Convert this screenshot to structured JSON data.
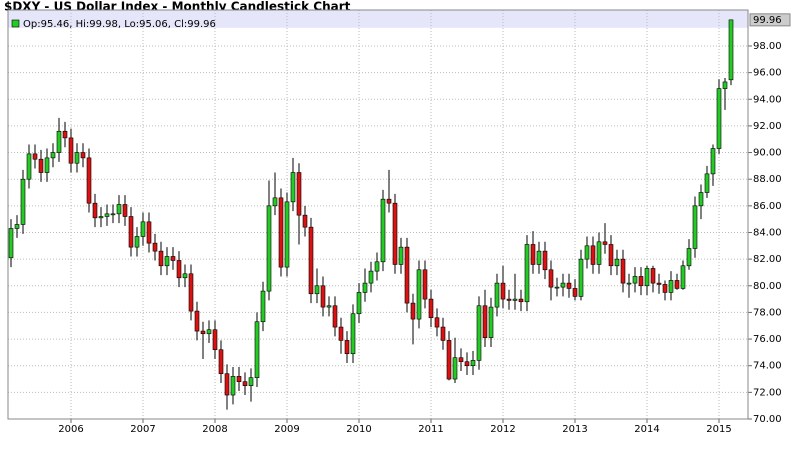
{
  "chart_data": {
    "type": "candlestick",
    "title": "$DXY - US Dollar Index - Monthly Candlestick Chart",
    "legend": "Op:95.46, Hi:99.98, Lo:95.06, Cl:99.96",
    "up_color": "#22cc22",
    "down_color": "#dd1111",
    "grid": true,
    "categories": [
      null,
      null,
      null,
      null,
      null,
      null,
      null,
      null,
      null,
      null,
      "2006",
      null,
      null,
      null,
      null,
      null,
      null,
      null,
      null,
      null,
      null,
      null,
      "2007",
      null,
      null,
      null,
      null,
      null,
      null,
      null,
      null,
      null,
      null,
      null,
      "2008",
      null,
      null,
      null,
      null,
      null,
      null,
      null,
      null,
      null,
      null,
      null,
      "2009",
      null,
      null,
      null,
      null,
      null,
      null,
      null,
      null,
      null,
      null,
      null,
      "2010",
      null,
      null,
      null,
      null,
      null,
      null,
      null,
      null,
      null,
      null,
      null,
      "2011",
      null,
      null,
      null,
      null,
      null,
      null,
      null,
      null,
      null,
      null,
      null,
      "2012",
      null,
      null,
      null,
      null,
      null,
      null,
      null,
      null,
      null,
      null,
      null,
      "2013",
      null,
      null,
      null,
      null,
      null,
      null,
      null,
      null,
      null,
      null,
      null,
      "2014",
      null,
      null,
      null,
      null,
      null,
      null,
      null,
      null,
      null,
      null,
      null,
      "2015",
      null,
      null
    ],
    "open": [
      82.1,
      84.3,
      84.6,
      88.0,
      89.9,
      89.5,
      88.5,
      89.6,
      90.0,
      91.6,
      91.1,
      89.2,
      90.0,
      89.6,
      86.2,
      85.1,
      85.2,
      85.4,
      85.4,
      86.1,
      85.2,
      82.9,
      83.7,
      84.8,
      83.2,
      82.6,
      81.5,
      82.2,
      81.9,
      80.6,
      80.9,
      78.1,
      76.6,
      76.4,
      76.7,
      75.2,
      73.4,
      71.8,
      73.2,
      72.8,
      72.5,
      73.1,
      77.3,
      79.6,
      86.0,
      86.6,
      81.4,
      86.3,
      88.5,
      85.3,
      84.4,
      79.4,
      80.0,
      78.4,
      78.5,
      76.9,
      75.9,
      74.9,
      77.9,
      79.5,
      80.2,
      81.1,
      81.8,
      86.5,
      86.2,
      81.6,
      82.9,
      78.7,
      77.5,
      81.2,
      79.0,
      77.6,
      76.9,
      75.9,
      73.0,
      74.6,
      74.3,
      74.0,
      74.4,
      78.5,
      76.1,
      78.4,
      80.2,
      79.0,
      78.9,
      79.0,
      78.8,
      83.1,
      81.6,
      82.6,
      81.2,
      79.9,
      79.9,
      80.2,
      79.8,
      79.2,
      82.0,
      83.0,
      81.6,
      83.3,
      83.1,
      81.5,
      82.0,
      80.2,
      80.2,
      80.7,
      80.0,
      81.3,
      80.2,
      80.1,
      79.5,
      80.4,
      79.8,
      81.5,
      82.8,
      86.0,
      87.0,
      88.4,
      90.3,
      94.8,
      95.46
    ],
    "high": [
      85.0,
      85.3,
      88.7,
      90.6,
      90.6,
      90.2,
      90.3,
      90.7,
      92.6,
      92.3,
      91.8,
      90.7,
      90.7,
      90.3,
      86.9,
      85.9,
      86.1,
      86.1,
      86.8,
      86.8,
      85.9,
      84.4,
      85.5,
      85.5,
      83.9,
      83.3,
      82.9,
      82.9,
      82.6,
      81.6,
      81.6,
      78.8,
      77.3,
      77.4,
      77.4,
      75.9,
      74.1,
      73.9,
      73.9,
      73.5,
      73.8,
      78.0,
      80.3,
      87.9,
      88.5,
      87.3,
      87.0,
      89.6,
      89.2,
      86.0,
      85.1,
      81.3,
      80.7,
      79.2,
      79.2,
      77.6,
      76.6,
      78.6,
      80.2,
      81.3,
      81.8,
      82.5,
      87.2,
      88.7,
      86.9,
      83.6,
      83.6,
      79.4,
      81.9,
      81.9,
      79.7,
      78.3,
      77.6,
      76.6,
      76.1,
      75.3,
      75.0,
      75.1,
      79.2,
      79.7,
      79.1,
      80.9,
      81.5,
      79.7,
      80.9,
      79.7,
      83.8,
      84.1,
      83.3,
      83.3,
      81.9,
      80.6,
      80.9,
      80.9,
      80.5,
      82.7,
      83.7,
      83.7,
      84.0,
      84.7,
      83.8,
      82.7,
      82.7,
      80.9,
      81.4,
      81.4,
      81.5,
      81.5,
      80.9,
      80.4,
      81.1,
      80.9,
      81.9,
      83.5,
      86.7,
      87.6,
      89.0,
      90.6,
      95.5,
      95.6,
      99.98
    ],
    "low": [
      81.4,
      83.6,
      83.9,
      87.3,
      88.8,
      87.8,
      87.8,
      88.9,
      89.3,
      90.4,
      88.5,
      88.5,
      88.9,
      85.5,
      84.4,
      84.4,
      84.5,
      84.7,
      84.7,
      84.5,
      82.2,
      82.2,
      83.0,
      82.5,
      81.9,
      80.8,
      80.8,
      81.2,
      79.9,
      79.9,
      77.4,
      75.9,
      74.5,
      75.7,
      74.5,
      72.7,
      70.7,
      71.1,
      72.1,
      71.8,
      71.3,
      72.4,
      76.6,
      78.9,
      85.3,
      80.7,
      80.7,
      85.6,
      83.1,
      83.7,
      78.7,
      78.7,
      77.7,
      77.7,
      76.2,
      74.9,
      74.2,
      74.2,
      77.2,
      78.8,
      79.5,
      80.4,
      81.1,
      85.5,
      80.9,
      80.9,
      78.0,
      75.6,
      76.8,
      78.3,
      76.9,
      76.2,
      75.2,
      72.9,
      72.7,
      73.6,
      73.3,
      73.3,
      73.7,
      75.4,
      75.4,
      77.7,
      78.3,
      78.2,
      78.2,
      78.1,
      78.1,
      80.9,
      80.9,
      80.5,
      78.9,
      79.2,
      79.2,
      79.1,
      78.9,
      78.9,
      81.3,
      80.9,
      80.9,
      82.4,
      80.8,
      80.8,
      79.5,
      79.1,
      79.5,
      79.3,
      79.3,
      79.5,
      79.4,
      78.9,
      78.9,
      79.7,
      79.7,
      81.2,
      82.1,
      85.0,
      86.6,
      87.5,
      89.9,
      93.2,
      95.06
    ],
    "close": [
      84.3,
      84.6,
      88.0,
      89.9,
      89.5,
      88.5,
      89.6,
      90.0,
      91.6,
      91.1,
      89.2,
      90.0,
      89.6,
      86.2,
      85.1,
      85.2,
      85.4,
      85.4,
      86.1,
      85.2,
      82.9,
      83.7,
      84.8,
      83.2,
      82.6,
      81.5,
      82.2,
      81.9,
      80.6,
      80.9,
      78.1,
      76.6,
      76.4,
      76.7,
      75.2,
      73.4,
      71.8,
      73.2,
      72.8,
      72.5,
      73.1,
      77.3,
      79.6,
      86.0,
      86.6,
      81.4,
      86.3,
      88.5,
      85.3,
      84.4,
      79.4,
      80.0,
      78.4,
      78.5,
      76.9,
      75.9,
      74.9,
      77.9,
      79.5,
      80.2,
      81.1,
      81.8,
      86.5,
      86.2,
      81.6,
      82.9,
      78.7,
      77.5,
      81.2,
      79.0,
      77.6,
      76.9,
      75.9,
      73.0,
      74.6,
      74.3,
      74.0,
      74.4,
      78.5,
      76.1,
      78.4,
      80.2,
      79.0,
      78.9,
      79.0,
      78.8,
      83.1,
      81.6,
      82.6,
      81.2,
      79.9,
      79.9,
      80.2,
      79.8,
      79.2,
      82.0,
      83.0,
      81.6,
      83.3,
      83.1,
      81.5,
      82.0,
      80.2,
      80.2,
      80.7,
      80.0,
      81.3,
      80.2,
      80.1,
      79.5,
      80.4,
      79.8,
      81.5,
      82.8,
      86.0,
      87.0,
      88.4,
      90.3,
      94.8,
      95.3,
      99.96
    ],
    "ylim": [
      70,
      100.7
    ],
    "yticks": [
      {
        "value": 70,
        "label": "70.00"
      },
      {
        "value": 72,
        "label": "72.00"
      },
      {
        "value": 74,
        "label": "74.00"
      },
      {
        "value": 76,
        "label": "76.00"
      },
      {
        "value": 78,
        "label": "78.00"
      },
      {
        "value": 80,
        "label": "80.00"
      },
      {
        "value": 82,
        "label": "82.00"
      },
      {
        "value": 84,
        "label": "84.00"
      },
      {
        "value": 86,
        "label": "86.00"
      },
      {
        "value": 88,
        "label": "88.00"
      },
      {
        "value": 90,
        "label": "90.00"
      },
      {
        "value": 92,
        "label": "92.00"
      },
      {
        "value": 94,
        "label": "94.00"
      },
      {
        "value": 96,
        "label": "96.00"
      },
      {
        "value": 98,
        "label": "98.00"
      }
    ]
  }
}
